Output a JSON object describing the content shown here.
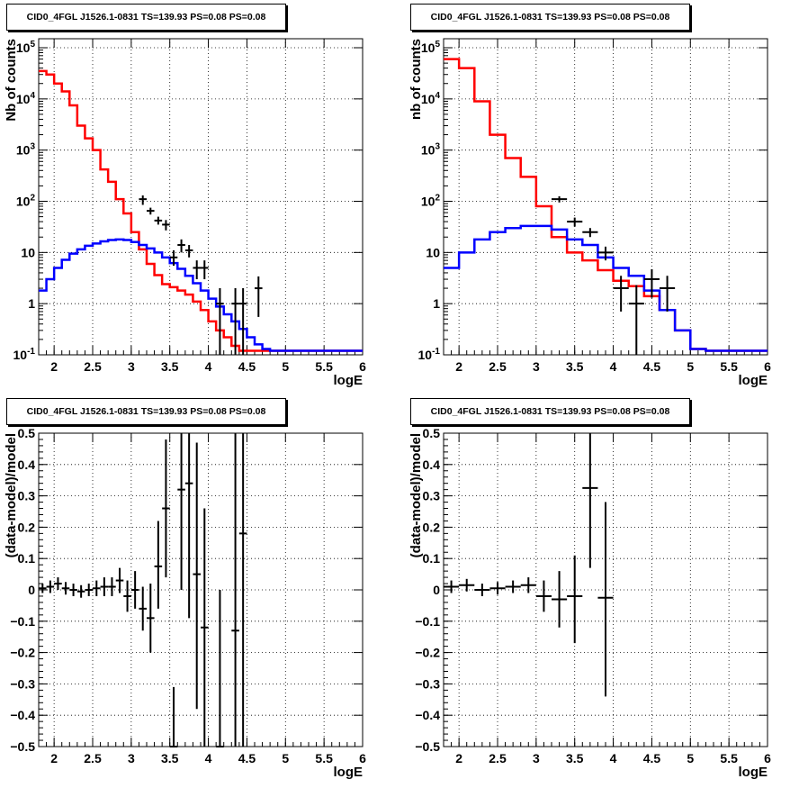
{
  "chart_data": [
    {
      "type": "line",
      "title": "CID0_4FGL J1526.1-0831 TS=139.93 PS=0.08 PS=0.08",
      "xlabel": "logE",
      "ylabel": "Nb of counts",
      "xlim": [
        1.8,
        6.0
      ],
      "ylim": [
        0.1,
        150000
      ],
      "log_y": true,
      "grid": true,
      "x_ticks": [
        "2",
        "2.5",
        "3",
        "3.5",
        "4",
        "4.5",
        "5",
        "5.5",
        "6"
      ],
      "y_ticks": [
        "10^{-1}",
        "1",
        "10",
        "10^{2}",
        "10^{3}",
        "10^{4}",
        "10^{5}"
      ],
      "bin_width": 0.1,
      "series": [
        {
          "color": "#ff0000",
          "style": "histogram",
          "x": [
            1.85,
            1.95,
            2.05,
            2.15,
            2.25,
            2.35,
            2.45,
            2.55,
            2.65,
            2.75,
            2.85,
            2.95,
            3.05,
            3.15,
            3.25,
            3.35,
            3.45,
            3.55,
            3.65,
            3.75,
            3.85,
            3.95,
            4.05,
            4.15,
            4.25,
            4.35,
            4.45,
            4.55,
            4.65,
            4.75,
            4.85,
            4.95,
            5.05,
            5.15,
            5.25,
            5.35,
            5.45,
            5.55,
            5.65,
            5.75,
            5.85,
            5.95
          ],
          "values": [
            35000,
            30000,
            20000,
            14000,
            7500,
            3000,
            1700,
            1000,
            420,
            240,
            110,
            58,
            25,
            11.5,
            6,
            3.6,
            2.4,
            2.1,
            1.8,
            1.5,
            1.1,
            0.75,
            0.45,
            0.3,
            0.22,
            0.15,
            0.12,
            0.12,
            0.12,
            0.12,
            0.12,
            0.12,
            0.12,
            0.12,
            0.12,
            0.12,
            0.12,
            0.12,
            0.12,
            0.12,
            0.12,
            0.12
          ]
        },
        {
          "color": "#0000ff",
          "style": "histogram",
          "x": [
            1.85,
            1.95,
            2.05,
            2.15,
            2.25,
            2.35,
            2.45,
            2.55,
            2.65,
            2.75,
            2.85,
            2.95,
            3.05,
            3.15,
            3.25,
            3.35,
            3.45,
            3.55,
            3.65,
            3.75,
            3.85,
            3.95,
            4.05,
            4.15,
            4.25,
            4.35,
            4.45,
            4.55,
            4.65,
            4.75,
            4.85,
            4.95,
            5.05,
            5.15,
            5.25,
            5.35,
            5.45,
            5.55,
            5.65,
            5.75,
            5.85,
            5.95
          ],
          "values": [
            1.8,
            3,
            5,
            7.2,
            9.5,
            11.5,
            13.5,
            15,
            16.5,
            17.5,
            18,
            17.5,
            16,
            14,
            12,
            10,
            8,
            6.2,
            4.8,
            3.5,
            2.5,
            1.8,
            1.25,
            0.88,
            0.62,
            0.45,
            0.32,
            0.22,
            0.16,
            0.13,
            0.12,
            0.12,
            0.12,
            0.12,
            0.12,
            0.12,
            0.12,
            0.12,
            0.12,
            0.12,
            0.12,
            0.12
          ]
        },
        {
          "color": "#000000",
          "style": "points",
          "points": [
            {
              "x": 3.15,
              "y": 110,
              "lo": 85,
              "hi": 130
            },
            {
              "x": 3.25,
              "y": 65,
              "lo": 55,
              "hi": 75
            },
            {
              "x": 3.35,
              "y": 42,
              "lo": 35,
              "hi": 50
            },
            {
              "x": 3.45,
              "y": 35,
              "lo": 27,
              "hi": 43
            },
            {
              "x": 3.55,
              "y": 8,
              "lo": 5.5,
              "hi": 11
            },
            {
              "x": 3.65,
              "y": 14,
              "lo": 10,
              "hi": 18
            },
            {
              "x": 3.75,
              "y": 11,
              "lo": 8,
              "hi": 14
            },
            {
              "x": 3.85,
              "y": 5,
              "lo": 3,
              "hi": 7
            },
            {
              "x": 3.95,
              "y": 5,
              "lo": 3,
              "hi": 7
            },
            {
              "x": 4.15,
              "y": 1,
              "lo": 0.1,
              "hi": 2
            },
            {
              "x": 4.35,
              "y": 1,
              "lo": 0.1,
              "hi": 2
            },
            {
              "x": 4.45,
              "y": 1,
              "lo": 0.1,
              "hi": 2
            },
            {
              "x": 4.65,
              "y": 2,
              "lo": 0.55,
              "hi": 3.4
            }
          ]
        }
      ]
    },
    {
      "type": "line",
      "title": "CID0_4FGL J1526.1-0831 TS=139.93 PS=0.08 PS=0.08",
      "xlabel": "logE",
      "ylabel": "nb of counts",
      "xlim": [
        1.8,
        6.0
      ],
      "ylim": [
        0.1,
        150000
      ],
      "log_y": true,
      "grid": true,
      "x_ticks": [
        "2",
        "2.5",
        "3",
        "3.5",
        "4",
        "4.5",
        "5",
        "5.5",
        "6"
      ],
      "y_ticks": [
        "10^{-1}",
        "1",
        "10",
        "10^{2}",
        "10^{3}",
        "10^{4}",
        "10^{5}"
      ],
      "bin_width": 0.2,
      "series": [
        {
          "color": "#ff0000",
          "style": "histogram",
          "x": [
            1.9,
            2.1,
            2.3,
            2.5,
            2.7,
            2.9,
            3.1,
            3.3,
            3.5,
            3.7,
            3.9,
            4.1,
            4.3,
            4.5,
            4.7,
            4.9,
            5.1,
            5.3,
            5.5,
            5.7,
            5.9
          ],
          "values": [
            60000,
            40000,
            9000,
            2000,
            700,
            300,
            80,
            20,
            10,
            7,
            4.5,
            2.8,
            2.2,
            1.4,
            0.75,
            0.3,
            0.13,
            0.12,
            0.12,
            0.12,
            0.12
          ]
        },
        {
          "color": "#0000ff",
          "style": "histogram",
          "x": [
            1.9,
            2.1,
            2.3,
            2.5,
            2.7,
            2.9,
            3.1,
            3.3,
            3.5,
            3.7,
            3.9,
            4.1,
            4.3,
            4.5,
            4.7,
            4.9,
            5.1,
            5.3,
            5.5,
            5.7,
            5.9
          ],
          "values": [
            5,
            10,
            18,
            25,
            30,
            33,
            33,
            28,
            18,
            14,
            8,
            5,
            3.5,
            1.8,
            0.75,
            0.3,
            0.13,
            0.12,
            0.12,
            0.12,
            0.12
          ]
        },
        {
          "color": "#000000",
          "style": "points",
          "points": [
            {
              "x": 3.3,
              "y": 110,
              "lo": 95,
              "hi": 125
            },
            {
              "x": 3.5,
              "y": 40,
              "lo": 32,
              "hi": 48
            },
            {
              "x": 3.7,
              "y": 25,
              "lo": 20,
              "hi": 30
            },
            {
              "x": 3.9,
              "y": 10,
              "lo": 7,
              "hi": 13
            },
            {
              "x": 4.1,
              "y": 2,
              "lo": 0.7,
              "hi": 3.5
            },
            {
              "x": 4.3,
              "y": 1,
              "lo": 0.1,
              "hi": 2.3
            },
            {
              "x": 4.5,
              "y": 3,
              "lo": 1.3,
              "hi": 4.7
            },
            {
              "x": 4.7,
              "y": 2,
              "lo": 0.7,
              "hi": 3.5
            }
          ]
        }
      ]
    },
    {
      "type": "scatter",
      "title": "CID0_4FGL J1526.1-0831 TS=139.93 PS=0.08 PS=0.08",
      "xlabel": "logE",
      "ylabel": "(data-model)/model",
      "xlim": [
        1.8,
        6.0
      ],
      "ylim": [
        -0.5,
        0.5
      ],
      "grid": true,
      "x_ticks": [
        "2",
        "2.5",
        "3",
        "3.5",
        "4",
        "4.5",
        "5",
        "5.5",
        "6"
      ],
      "y_ticks": [
        "−0.5",
        "−0.4",
        "−0.3",
        "−0.2",
        "−0.1",
        "0",
        "0.1",
        "0.2",
        "0.3",
        "0.4",
        "0.5"
      ],
      "bin_width": 0.1,
      "series": [
        {
          "color": "#000000",
          "style": "points",
          "points": [
            {
              "x": 1.85,
              "y": 0.005,
              "lo": -0.01,
              "hi": 0.02
            },
            {
              "x": 1.95,
              "y": 0.01,
              "lo": -0.01,
              "hi": 0.03
            },
            {
              "x": 2.05,
              "y": 0.02,
              "lo": 0.0,
              "hi": 0.04
            },
            {
              "x": 2.15,
              "y": 0.005,
              "lo": -0.015,
              "hi": 0.025
            },
            {
              "x": 2.25,
              "y": 0.0,
              "lo": -0.02,
              "hi": 0.02
            },
            {
              "x": 2.35,
              "y": -0.005,
              "lo": -0.025,
              "hi": 0.015
            },
            {
              "x": 2.45,
              "y": 0.0,
              "lo": -0.02,
              "hi": 0.02
            },
            {
              "x": 2.55,
              "y": 0.005,
              "lo": -0.02,
              "hi": 0.03
            },
            {
              "x": 2.65,
              "y": 0.01,
              "lo": -0.02,
              "hi": 0.04
            },
            {
              "x": 2.75,
              "y": 0.01,
              "lo": -0.02,
              "hi": 0.04
            },
            {
              "x": 2.85,
              "y": 0.03,
              "lo": -0.01,
              "hi": 0.07
            },
            {
              "x": 2.95,
              "y": -0.02,
              "lo": -0.07,
              "hi": 0.03
            },
            {
              "x": 3.05,
              "y": 0.0,
              "lo": -0.06,
              "hi": 0.06
            },
            {
              "x": 3.15,
              "y": -0.06,
              "lo": -0.13,
              "hi": 0.01
            },
            {
              "x": 3.25,
              "y": -0.09,
              "lo": -0.2,
              "hi": 0.02
            },
            {
              "x": 3.35,
              "y": 0.075,
              "lo": -0.06,
              "hi": 0.22
            },
            {
              "x": 3.45,
              "y": 0.26,
              "lo": 0.04,
              "hi": 0.48
            },
            {
              "x": 3.55,
              "y": -0.5,
              "lo": -0.5,
              "hi": -0.31
            },
            {
              "x": 3.65,
              "y": 0.32,
              "lo": 0.0,
              "hi": 0.5
            },
            {
              "x": 3.75,
              "y": 0.34,
              "lo": -0.09,
              "hi": 0.5
            },
            {
              "x": 3.85,
              "y": 0.05,
              "lo": -0.38,
              "hi": 0.47
            },
            {
              "x": 3.95,
              "y": -0.12,
              "lo": -0.5,
              "hi": 0.26
            },
            {
              "x": 4.15,
              "y": -0.5,
              "lo": -0.5,
              "hi": 0.0
            },
            {
              "x": 4.35,
              "y": -0.13,
              "lo": -0.5,
              "hi": 0.5
            },
            {
              "x": 4.45,
              "y": 0.18,
              "lo": -0.5,
              "hi": 0.5
            }
          ]
        }
      ]
    },
    {
      "type": "scatter",
      "title": "CID0_4FGL J1526.1-0831 TS=139.93 PS=0.08 PS=0.08",
      "xlabel": "logE",
      "ylabel": "(data-model)/model",
      "xlim": [
        1.8,
        6.0
      ],
      "ylim": [
        -0.5,
        0.5
      ],
      "grid": true,
      "x_ticks": [
        "2",
        "2.5",
        "3",
        "3.5",
        "4",
        "4.5",
        "5",
        "5.5",
        "6"
      ],
      "y_ticks": [
        "−0.5",
        "−0.4",
        "−0.3",
        "−0.2",
        "−0.1",
        "0",
        "0.1",
        "0.2",
        "0.3",
        "0.4",
        "0.5"
      ],
      "bin_width": 0.2,
      "series": [
        {
          "color": "#000000",
          "style": "points",
          "points": [
            {
              "x": 1.9,
              "y": 0.01,
              "lo": -0.01,
              "hi": 0.03
            },
            {
              "x": 2.1,
              "y": 0.015,
              "lo": -0.005,
              "hi": 0.035
            },
            {
              "x": 2.3,
              "y": 0.0,
              "lo": -0.02,
              "hi": 0.02
            },
            {
              "x": 2.5,
              "y": 0.005,
              "lo": -0.015,
              "hi": 0.025
            },
            {
              "x": 2.7,
              "y": 0.01,
              "lo": -0.01,
              "hi": 0.03
            },
            {
              "x": 2.9,
              "y": 0.015,
              "lo": -0.01,
              "hi": 0.04
            },
            {
              "x": 3.1,
              "y": -0.02,
              "lo": -0.07,
              "hi": 0.03
            },
            {
              "x": 3.3,
              "y": -0.03,
              "lo": -0.12,
              "hi": 0.06
            },
            {
              "x": 3.5,
              "y": -0.02,
              "lo": -0.17,
              "hi": 0.11
            },
            {
              "x": 3.7,
              "y": 0.325,
              "lo": 0.07,
              "hi": 0.5
            },
            {
              "x": 3.9,
              "y": -0.025,
              "lo": -0.34,
              "hi": 0.28
            }
          ]
        }
      ]
    }
  ]
}
